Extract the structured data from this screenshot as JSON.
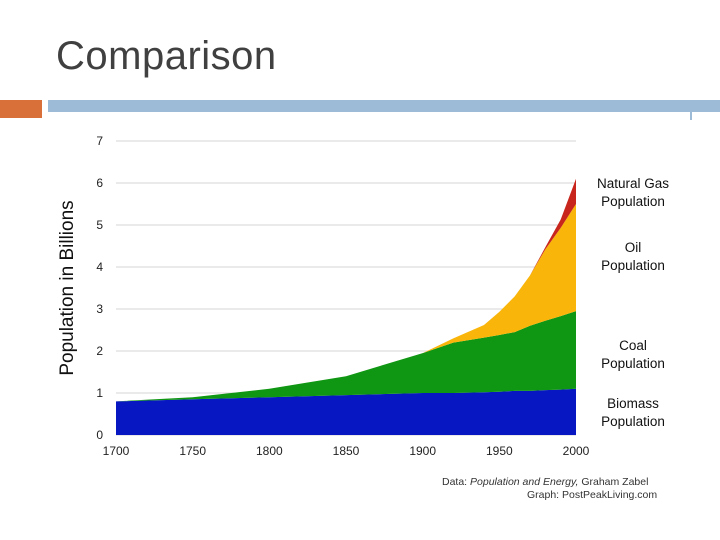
{
  "slide": {
    "title": "Comparison"
  },
  "colors": {
    "title_text": "#404040",
    "accent_orange": "#d9703a",
    "accent_blue": "#9dbbd6",
    "biomass": "#0718c2",
    "coal": "#0f9612",
    "oil": "#f9b50a",
    "natural_gas": "#c8261d"
  },
  "credits": {
    "data_prefix": "Data: ",
    "data_source": "Population and Energy,",
    "data_author": " Graham Zabel",
    "graph": "Graph: PostPeakLiving.com"
  },
  "chart_data": {
    "type": "area",
    "stacked": true,
    "title": "",
    "xlabel": "",
    "ylabel": "Population in Billions",
    "xlim": [
      1700,
      2000
    ],
    "ylim": [
      0,
      7
    ],
    "x_ticks": [
      1700,
      1750,
      1800,
      1850,
      1900,
      1950,
      2000
    ],
    "y_ticks": [
      0,
      1,
      2,
      3,
      4,
      5,
      6,
      7
    ],
    "grid": true,
    "legend": "right, labels beside each band",
    "x": [
      1700,
      1750,
      1800,
      1850,
      1900,
      1920,
      1940,
      1950,
      1960,
      1970,
      1980,
      1990,
      2000
    ],
    "series": [
      {
        "name": "Biomass Population",
        "legend": [
          "Biomass",
          "Population"
        ],
        "color_key": "biomass",
        "values": [
          0.8,
          0.85,
          0.9,
          0.95,
          1.0,
          1.0,
          1.02,
          1.03,
          1.05,
          1.05,
          1.07,
          1.08,
          1.1
        ]
      },
      {
        "name": "Coal Population",
        "legend": [
          "Coal",
          "Population"
        ],
        "color_key": "coal",
        "values": [
          0.0,
          0.05,
          0.2,
          0.45,
          0.95,
          1.2,
          1.3,
          1.35,
          1.4,
          1.55,
          1.65,
          1.75,
          1.85
        ]
      },
      {
        "name": "Oil Population",
        "legend": [
          "Oil",
          "Population"
        ],
        "color_key": "oil",
        "values": [
          0.0,
          0.0,
          0.0,
          0.0,
          0.0,
          0.1,
          0.3,
          0.55,
          0.85,
          1.2,
          1.7,
          2.1,
          2.55
        ]
      },
      {
        "name": "Natural Gas Population",
        "legend": [
          "Natural Gas",
          "Population"
        ],
        "color_key": "natural_gas",
        "values": [
          0.0,
          0.0,
          0.0,
          0.0,
          0.0,
          0.0,
          0.0,
          0.0,
          0.0,
          0.0,
          0.05,
          0.2,
          0.6
        ]
      }
    ]
  }
}
